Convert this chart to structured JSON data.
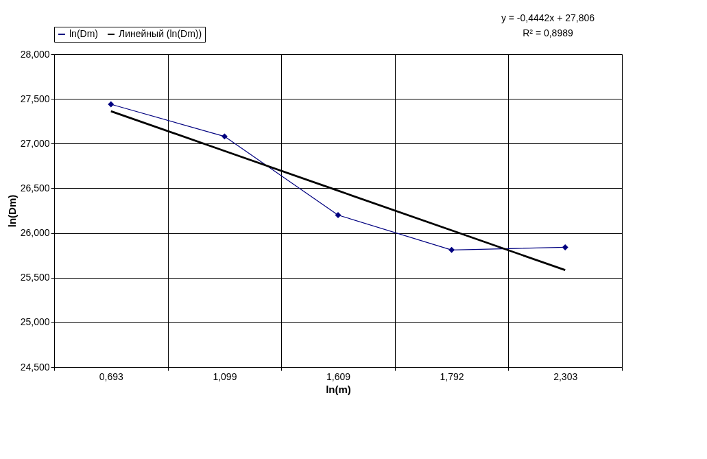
{
  "chart_data": {
    "type": "line",
    "xlabel": "ln(m)",
    "ylabel": "ln(Dm)",
    "categories": [
      "0,693",
      "1,099",
      "1,609",
      "1,792",
      "2,303"
    ],
    "series": [
      {
        "name": "ln(Dm)",
        "color": "#000080",
        "values": [
          27.44,
          27.08,
          26.2,
          25.81,
          25.84
        ],
        "marker": "diamond"
      },
      {
        "name": "Линейный (ln(Dm))",
        "color": "#000000",
        "values": [
          27.362,
          26.918,
          26.473,
          26.029,
          25.585
        ],
        "marker": "none"
      }
    ],
    "ylim": [
      24.5,
      28.0
    ],
    "yticks": [
      {
        "value": 24.5,
        "label": "24,500"
      },
      {
        "value": 25.0,
        "label": "25,000"
      },
      {
        "value": 25.5,
        "label": "25,500"
      },
      {
        "value": 26.0,
        "label": "26,000"
      },
      {
        "value": 26.5,
        "label": "26,500"
      },
      {
        "value": 27.0,
        "label": "27,000"
      },
      {
        "value": 27.5,
        "label": "27,500"
      },
      {
        "value": 28.0,
        "label": "28,000"
      }
    ],
    "grid": true,
    "legend": "top",
    "annotations": [
      "y = -0,4442x + 27,806",
      "R² = 0,8989"
    ]
  }
}
